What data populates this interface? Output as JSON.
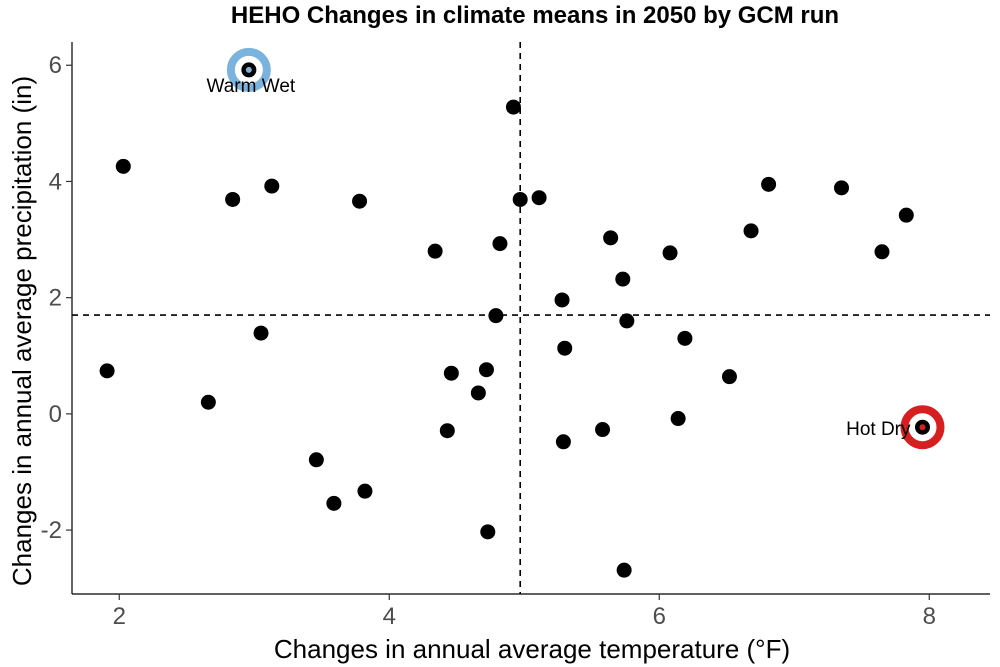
{
  "chart_data": {
    "type": "scatter",
    "title": "HEHO Changes in climate means in 2050 by GCM run",
    "xlabel": "Changes in annual average temperature (°F)",
    "ylabel": "Changes in annual average precipitation (in)",
    "xlim": [
      1.65,
      8.45
    ],
    "ylim": [
      -3.1,
      6.4
    ],
    "x_ticks": [
      2,
      4,
      6,
      8
    ],
    "y_ticks": [
      -2,
      0,
      2,
      4,
      6
    ],
    "x_tick_labels": [
      "2",
      "4",
      "6",
      "8"
    ],
    "y_tick_labels": [
      "-2",
      "0",
      "2",
      "4",
      "6"
    ],
    "grid": false,
    "reference_lines": {
      "x": 4.97,
      "y": 1.7
    },
    "points": [
      {
        "x": 2.96,
        "y": 5.92
      },
      {
        "x": 4.92,
        "y": 5.28
      },
      {
        "x": 2.03,
        "y": 4.26
      },
      {
        "x": 3.13,
        "y": 3.92
      },
      {
        "x": 2.84,
        "y": 3.69
      },
      {
        "x": 3.78,
        "y": 3.66
      },
      {
        "x": 4.97,
        "y": 3.69
      },
      {
        "x": 5.11,
        "y": 3.72
      },
      {
        "x": 6.81,
        "y": 3.95
      },
      {
        "x": 7.35,
        "y": 3.89
      },
      {
        "x": 7.83,
        "y": 3.42
      },
      {
        "x": 6.68,
        "y": 3.15
      },
      {
        "x": 5.64,
        "y": 3.03
      },
      {
        "x": 4.82,
        "y": 2.93
      },
      {
        "x": 4.34,
        "y": 2.8
      },
      {
        "x": 6.08,
        "y": 2.77
      },
      {
        "x": 7.65,
        "y": 2.79
      },
      {
        "x": 5.73,
        "y": 2.32
      },
      {
        "x": 5.28,
        "y": 1.96
      },
      {
        "x": 4.79,
        "y": 1.69
      },
      {
        "x": 5.76,
        "y": 1.6
      },
      {
        "x": 3.05,
        "y": 1.39
      },
      {
        "x": 6.19,
        "y": 1.3
      },
      {
        "x": 5.3,
        "y": 1.13
      },
      {
        "x": 1.91,
        "y": 0.74
      },
      {
        "x": 4.46,
        "y": 0.7
      },
      {
        "x": 4.72,
        "y": 0.76
      },
      {
        "x": 6.52,
        "y": 0.64
      },
      {
        "x": 4.66,
        "y": 0.36
      },
      {
        "x": 2.66,
        "y": 0.2
      },
      {
        "x": 6.14,
        "y": -0.08
      },
      {
        "x": 4.43,
        "y": -0.29
      },
      {
        "x": 5.58,
        "y": -0.27
      },
      {
        "x": 5.29,
        "y": -0.48
      },
      {
        "x": 7.95,
        "y": -0.23
      },
      {
        "x": 3.46,
        "y": -0.79
      },
      {
        "x": 3.82,
        "y": -1.33
      },
      {
        "x": 3.59,
        "y": -1.54
      },
      {
        "x": 4.73,
        "y": -2.03
      },
      {
        "x": 5.74,
        "y": -2.69
      }
    ],
    "highlights": [
      {
        "label": "Warm Wet",
        "x": 2.96,
        "y": 5.92,
        "color": "#7ab4de"
      },
      {
        "label": "Hot Dry",
        "x": 7.95,
        "y": -0.23,
        "color": "#d62020"
      }
    ]
  }
}
